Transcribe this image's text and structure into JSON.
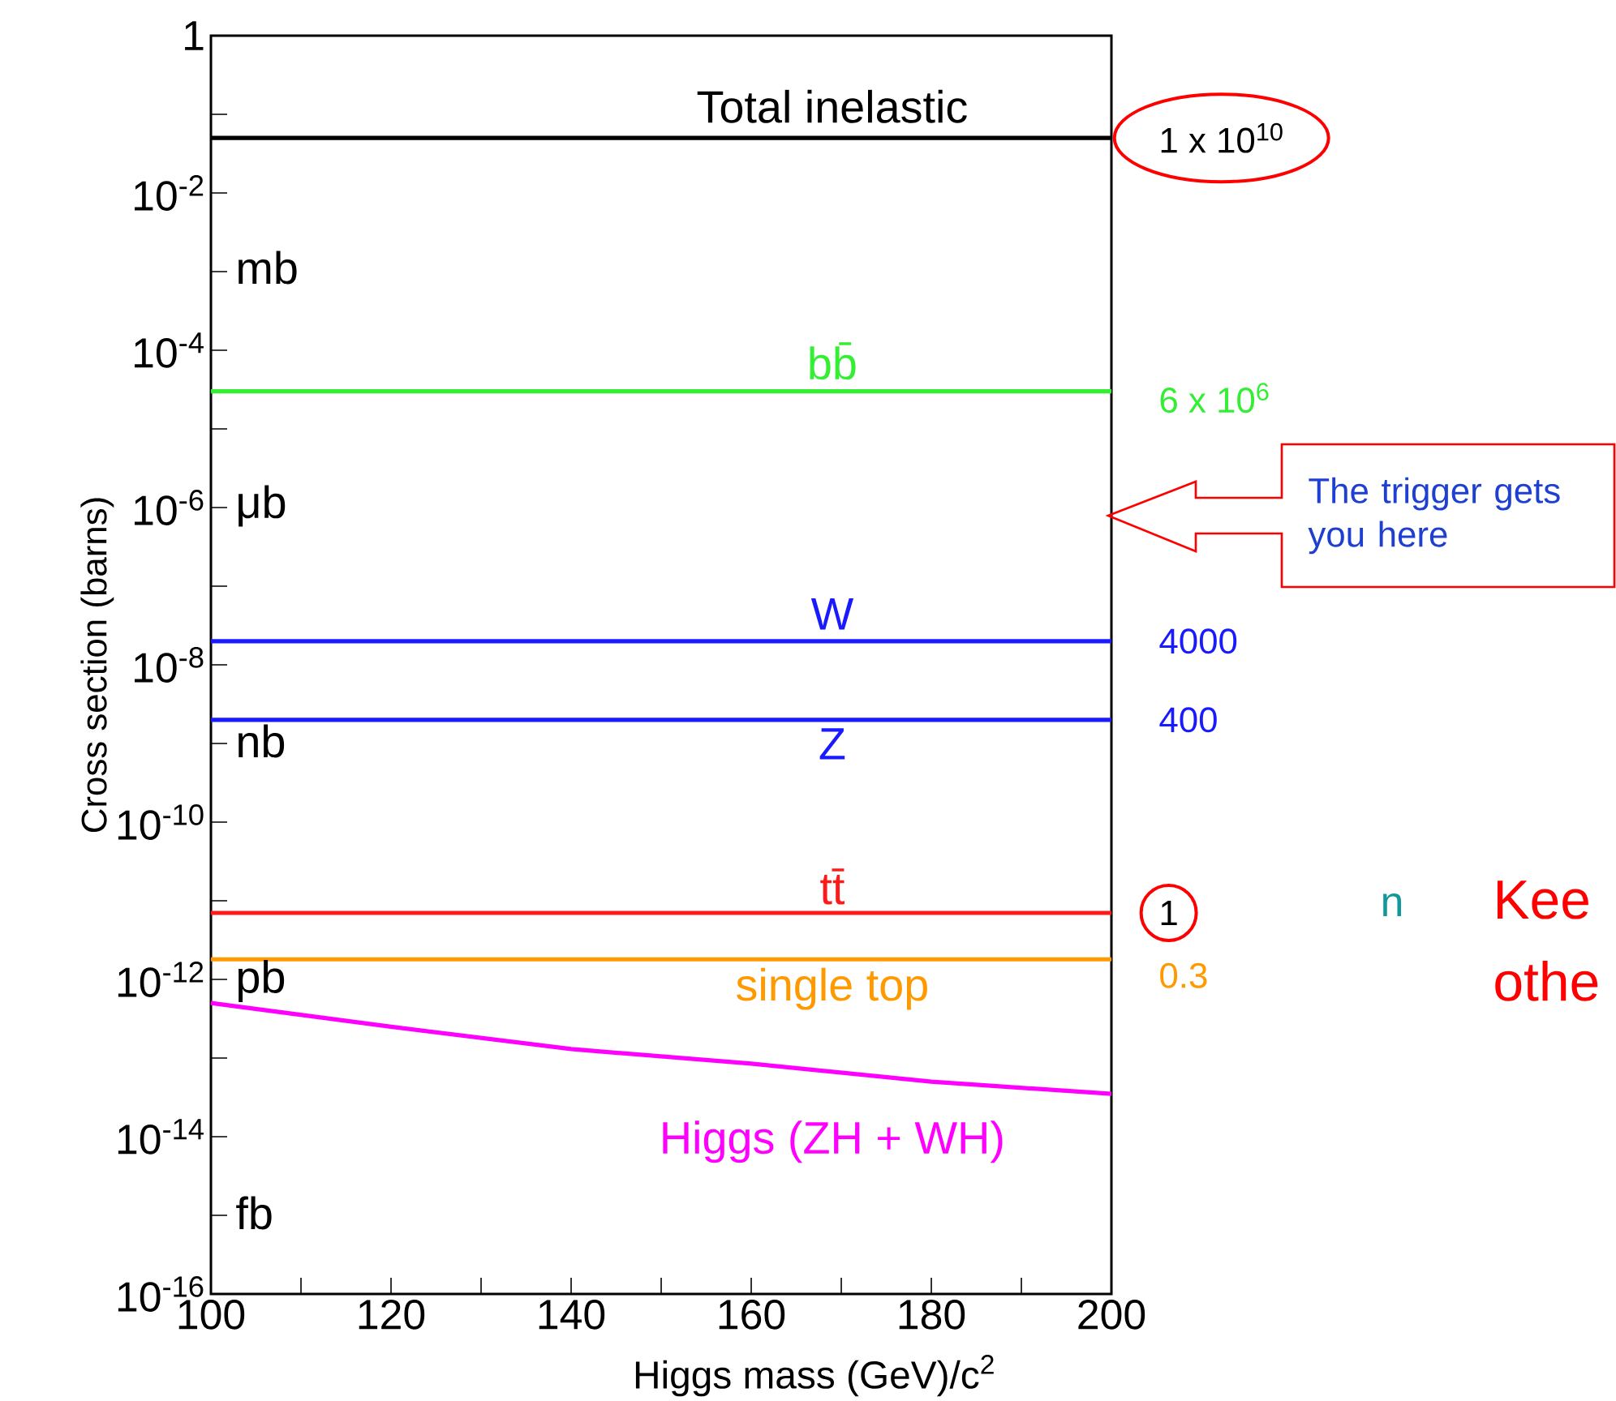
{
  "chart_data": {
    "type": "line",
    "xlabel": "Higgs mass (GeV)/c$^{2}$",
    "ylabel": "Cross section (barns)",
    "log": "y",
    "x": [
      100,
      200
    ],
    "xlim": [
      100,
      200
    ],
    "ylim": [
      1e-16,
      1
    ],
    "xticks": [
      100,
      {
        "value": 110,
        "label": null
      },
      120,
      {
        "value": 130,
        "label": null
      },
      140,
      {
        "value": 150,
        "label": null
      },
      160,
      {
        "value": 170,
        "label": null
      },
      180,
      {
        "value": 190,
        "label": null
      },
      200
    ],
    "yticks": [
      1,
      {
        "value": 0.1,
        "label": null
      },
      {
        "value": 0.01,
        "label": "10$^{-2}$"
      },
      {
        "value": 0.001,
        "label": null
      },
      {
        "value": 0.0001,
        "label": "10$^{-4}$"
      },
      {
        "value": 1e-05,
        "label": null
      },
      {
        "value": 1e-06,
        "label": "10$^{-6}$"
      },
      {
        "value": 1e-07,
        "label": null
      },
      {
        "value": 1e-08,
        "label": "10$^{-8}$"
      },
      {
        "value": 1e-09,
        "label": null
      },
      {
        "value": 1e-10,
        "label": "10$^{-10}$"
      },
      {
        "value": 1e-11,
        "label": null
      },
      {
        "value": 1e-12,
        "label": "10$^{-12}$"
      },
      {
        "value": 1e-13,
        "label": null
      },
      {
        "value": 1e-14,
        "label": "10$^{-14}$"
      },
      {
        "value": 1e-15,
        "label": null
      },
      {
        "value": 1e-16,
        "label": "10$^{-16}$"
      }
    ],
    "series": [
      {
        "name": "Total inelastic",
        "color": "#000000",
        "values": [
          0.05,
          0.05
        ]
      },
      {
        "name": "bb̄",
        "color": "#33ee33",
        "values": [
          3e-05,
          3e-05
        ]
      },
      {
        "name": "W",
        "color": "#1a1aff",
        "values": [
          2e-08,
          2e-08
        ]
      },
      {
        "name": "Z",
        "color": "#1a1aff",
        "values": [
          2e-09,
          2e-09
        ]
      },
      {
        "name": "tt̄",
        "color": "#ff1a1a",
        "values": [
          7e-12,
          7e-12
        ]
      },
      {
        "name": "single top",
        "color": "#ff9900",
        "values": [
          1.8e-12,
          1.8e-12
        ]
      },
      {
        "name": "Higgs (ZH + WH)",
        "color": "#ff00ff",
        "x": [
          100,
          120,
          140,
          160,
          180,
          200
        ],
        "values": [
          5e-13,
          2.5e-13,
          1.3e-13,
          8.5e-14,
          5e-14,
          3.5e-14
        ]
      }
    ],
    "annotations": [
      "1 x 10$^{10}$",
      "6 x 10$^{6}$",
      "4000",
      "400",
      "1",
      "0.3",
      "The trigger gets you here",
      "n",
      "Kee",
      "othe",
      "mb",
      "μb",
      "nb",
      "pb",
      "fb"
    ]
  }
}
